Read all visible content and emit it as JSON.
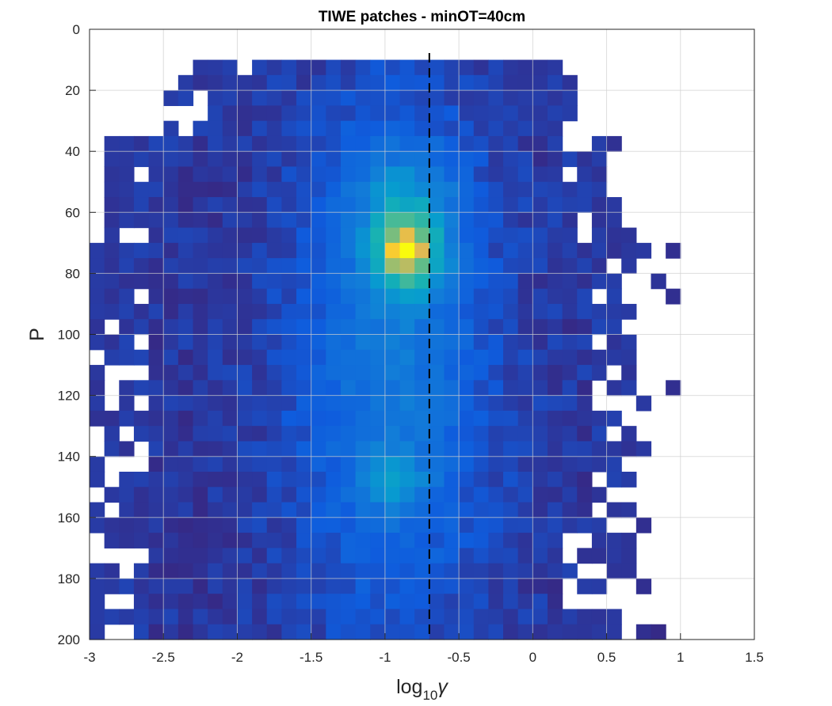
{
  "chart_data": {
    "type": "heatmap",
    "title": "TIWE patches - minOT=40cm",
    "xlabel": {
      "base": "log",
      "sub": "10",
      "symbol": "γ"
    },
    "ylabel": "P",
    "xlim": [
      -3,
      1.5
    ],
    "ylim": [
      0,
      200
    ],
    "y_reversed": true,
    "grid": true,
    "colormap": "parula",
    "xticks": [
      -3,
      -2.5,
      -2,
      -1.5,
      -1,
      -0.5,
      0,
      0.5,
      1,
      1.5
    ],
    "xtick_labels": [
      "-3",
      "-2.5",
      "-2",
      "-1.5",
      "-1",
      "-0.5",
      "0",
      "0.5",
      "1",
      "1.5"
    ],
    "yticks": [
      0,
      20,
      40,
      60,
      80,
      100,
      120,
      140,
      160,
      180,
      200
    ],
    "ytick_labels": [
      "0",
      "20",
      "40",
      "60",
      "80",
      "100",
      "120",
      "140",
      "160",
      "180",
      "200"
    ],
    "bin_width_x": 0.1,
    "bin_height_y": 5,
    "reference_line": {
      "x": -0.7,
      "style": "dashed",
      "color": "#000000"
    },
    "density_peaks": [
      {
        "x": -0.85,
        "y": 74,
        "level": 1.0
      },
      {
        "x": -0.95,
        "y": 148,
        "level": 0.5
      }
    ]
  }
}
